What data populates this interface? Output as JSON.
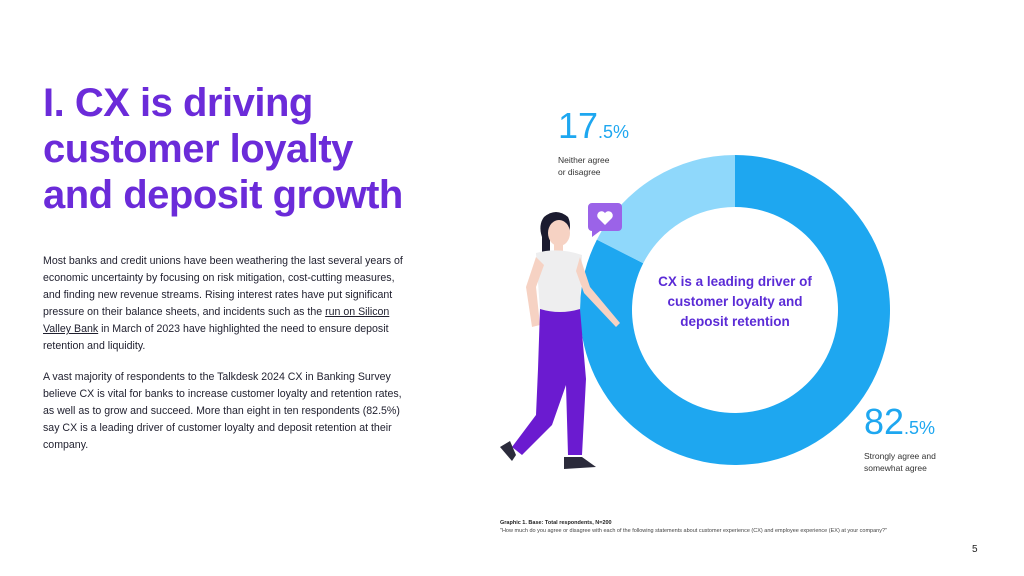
{
  "title": {
    "line1": "I. CX is driving",
    "line2": "customer loyalty",
    "line3": "and deposit growth"
  },
  "body": {
    "p1_before_link": "Most banks and credit unions have been weathering the last several years of economic uncertainty by focusing on risk mitigation, cost-cutting measures, and finding new revenue streams. Rising interest rates have put significant pressure on their balance sheets, and incidents such as the ",
    "p1_link": "run on Silicon Valley Bank",
    "p1_after_link": " in March of 2023 have highlighted the need to ensure deposit retention and liquidity.",
    "p2": "A vast majority of respondents to the Talkdesk 2024 CX in Banking Survey believe CX is vital for banks to increase customer loyalty and retention rates, as well as to grow and succeed. More than eight in ten respondents (82.5%) say CX is a leading driver of customer loyalty and deposit retention at their company."
  },
  "chart_data": {
    "type": "pie",
    "title": "CX is a leading driver of customer loyalty and deposit retention",
    "slices": [
      {
        "label": "Strongly agree and somewhat agree",
        "value": 82.5,
        "color": "#1ea7f0"
      },
      {
        "label": "Neither agree or disagree",
        "value": 17.5,
        "color": "#8fd8fb"
      }
    ],
    "stat_a": {
      "int": "17",
      "dec": ".5%",
      "label_line1": "Neither agree",
      "label_line2": "or disagree"
    },
    "stat_b": {
      "int": "82",
      "dec": ".5%",
      "label_line1": "Strongly agree and",
      "label_line2": "somewhat agree"
    }
  },
  "footnote": {
    "label": "Graphic 1. Base: Total respondents, N=200",
    "question": "\"How much do you agree or disagree with each of the following statements about customer experience (CX) and employee experience (EX) at your company?\""
  },
  "page_number": "5",
  "colors": {
    "accent": "#6b2bd9",
    "donut_main": "#1ea7f0",
    "donut_light": "#8fd8fb"
  }
}
